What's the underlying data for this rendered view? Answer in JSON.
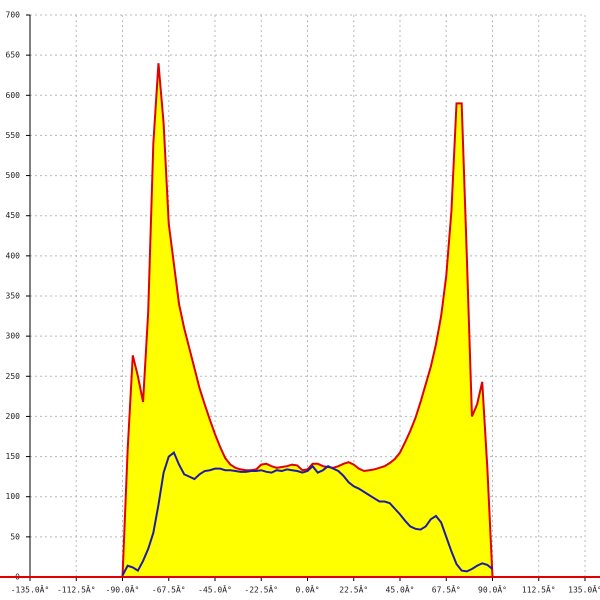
{
  "chart_data": {
    "type": "area",
    "x": [
      -135,
      -90,
      -87.5,
      -85,
      -82.5,
      -80,
      -77.5,
      -75,
      -72.5,
      -70,
      -67.5,
      -65,
      -62.5,
      -60,
      -57.5,
      -55,
      -52.5,
      -50,
      -47.5,
      -45,
      -42.5,
      -40,
      -37.5,
      -35,
      -32.5,
      -30,
      -27.5,
      -25,
      -22.5,
      -20,
      -17.5,
      -15,
      -12.5,
      -10,
      -7.5,
      -5,
      -2.5,
      0,
      2.5,
      5,
      7.5,
      10,
      12.5,
      15,
      17.5,
      20,
      22.5,
      25,
      27.5,
      30,
      32.5,
      35,
      37.5,
      40,
      42.5,
      45,
      47.5,
      50,
      52.5,
      55,
      57.5,
      60,
      62.5,
      65,
      67.5,
      70,
      72.5,
      75,
      77.5,
      80,
      82.5,
      85,
      87.5,
      90,
      135
    ],
    "series": [
      {
        "type": "area",
        "color": "#e00000",
        "fill": "#ffff00",
        "values": [
          0,
          0,
          158,
          276,
          250,
          218,
          330,
          540,
          640,
          565,
          440,
          390,
          340,
          310,
          285,
          260,
          235,
          215,
          196,
          178,
          162,
          148,
          140,
          136,
          134,
          133,
          133,
          134,
          140,
          141,
          138,
          136,
          137,
          138,
          140,
          139,
          133,
          134,
          141,
          141,
          138,
          137,
          136,
          138,
          141,
          143,
          140,
          135,
          132,
          133,
          134,
          136,
          138,
          142,
          147,
          155,
          168,
          182,
          198,
          218,
          240,
          262,
          290,
          325,
          375,
          455,
          590,
          590,
          400,
          200,
          215,
          243,
          135,
          0,
          0
        ]
      },
      {
        "type": "line",
        "color": "#1c1ca8",
        "values": [
          null,
          2,
          14,
          12,
          8,
          20,
          35,
          55,
          90,
          130,
          150,
          155,
          140,
          128,
          125,
          122,
          128,
          132,
          133,
          135,
          135,
          133,
          133,
          132,
          131,
          131,
          132,
          132,
          133,
          131,
          130,
          133,
          132,
          134,
          133,
          132,
          130,
          132,
          138,
          130,
          133,
          138,
          135,
          132,
          126,
          118,
          113,
          110,
          106,
          102,
          98,
          94,
          94,
          92,
          85,
          78,
          70,
          63,
          60,
          59,
          63,
          72,
          76,
          68,
          50,
          32,
          16,
          8,
          7,
          10,
          14,
          17,
          15,
          10,
          null
        ]
      }
    ],
    "xlim": [
      -135,
      135
    ],
    "ylim": [
      0,
      700
    ],
    "xticks": [
      {
        "value": -135,
        "label": "-135.0Â°"
      },
      {
        "value": -112.5,
        "label": "-112.5Â°"
      },
      {
        "value": -90,
        "label": "-90.0Â°"
      },
      {
        "value": -67.5,
        "label": "-67.5Â°"
      },
      {
        "value": -45,
        "label": "-45.0Â°"
      },
      {
        "value": -22.5,
        "label": "-22.5Â°"
      },
      {
        "value": 0,
        "label": "0.0Â°"
      },
      {
        "value": 22.5,
        "label": "22.5Â°"
      },
      {
        "value": 45,
        "label": "45.0Â°"
      },
      {
        "value": 67.5,
        "label": "67.5Â°"
      },
      {
        "value": 90,
        "label": "90.0Â°"
      },
      {
        "value": 112.5,
        "label": "112.5Â°"
      },
      {
        "value": 135,
        "label": "135.0Â°"
      }
    ],
    "yticks": [
      0,
      50,
      100,
      150,
      200,
      250,
      300,
      350,
      400,
      450,
      500,
      550,
      600,
      650,
      700
    ],
    "grid": true
  }
}
